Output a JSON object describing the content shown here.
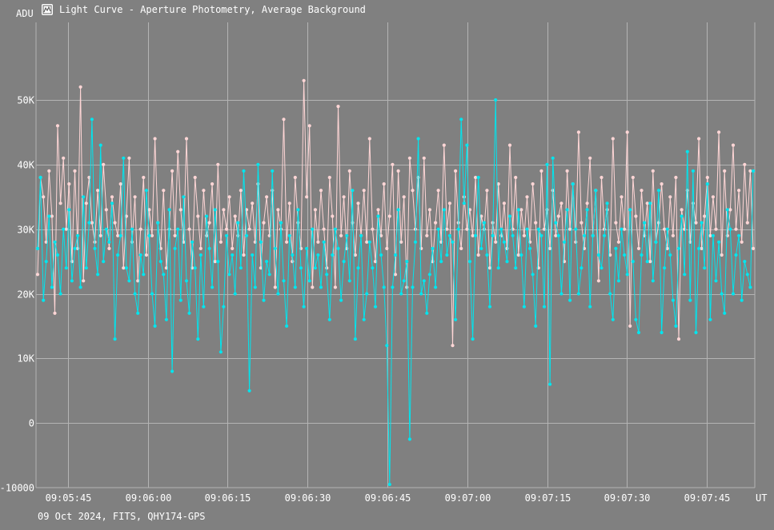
{
  "window": {
    "title": "Light Curve - Aperture Photometry, Average Background",
    "icon": "light-curve-icon"
  },
  "footer": "09 Oct 2024, FITS, QHY174-GPS",
  "colors": {
    "background": "#808080",
    "grid": "#b4b4b4",
    "series_target": "#ffd6d6",
    "series_comparison": "#00e5ee",
    "text": "#ffffff"
  },
  "chart_data": {
    "type": "line",
    "ylabel": "ADU",
    "xlabel": "UT",
    "ylim": [
      -10000,
      62000
    ],
    "xlim": [
      "09:05:39",
      "09:07:54"
    ],
    "yticks": [
      -10000,
      0,
      10000,
      20000,
      30000,
      40000,
      50000
    ],
    "ytick_labels": [
      "-10000",
      "0",
      "10K",
      "20K",
      "30K",
      "40K",
      "50K"
    ],
    "xtick_labels": [
      "09:05:45",
      "09:06:00",
      "09:06:15",
      "09:06:30",
      "09:06:45",
      "09:07:00",
      "09:07:15",
      "09:07:30",
      "09:07:45"
    ],
    "grid": true,
    "sampling": "approx. 0.1 s between points, 09:05:39.0 to 09:07:53.9",
    "series": [
      {
        "color": "#ffd6d6",
        "values": [
          23000,
          38000,
          35000,
          28000,
          39000,
          32000,
          17000,
          46000,
          34000,
          41000,
          30000,
          37000,
          25000,
          39000,
          27000,
          52000,
          22000,
          34000,
          38000,
          31000,
          28000,
          36000,
          29000,
          40000,
          33000,
          27000,
          35000,
          31000,
          29000,
          37000,
          24000,
          32000,
          41000,
          28000,
          35000,
          22000,
          30000,
          38000,
          26000,
          33000,
          29000,
          44000,
          31000,
          27000,
          36000,
          24000,
          30000,
          39000,
          29000,
          42000,
          33000,
          28000,
          44000,
          30000,
          24000,
          38000,
          32000,
          27000,
          36000,
          29000,
          31000,
          37000,
          25000,
          40000,
          28000,
          33000,
          30000,
          35000,
          27000,
          32000,
          29000,
          36000,
          26000,
          33000,
          30000,
          34000,
          28000,
          37000,
          24000,
          31000,
          35000,
          29000,
          36000,
          21000,
          33000,
          30000,
          47000,
          28000,
          34000,
          25000,
          38000,
          31000,
          27000,
          53000,
          35000,
          46000,
          21000,
          33000,
          28000,
          36000,
          30000,
          24000,
          38000,
          32000,
          21000,
          49000,
          29000,
          35000,
          27000,
          39000,
          31000,
          26000,
          34000,
          29000,
          36000,
          28000,
          44000,
          30000,
          25000,
          33000,
          29000,
          37000,
          27000,
          32000,
          40000,
          23000,
          39000,
          28000,
          35000,
          21000,
          41000,
          36000,
          30000,
          38000,
          27000,
          41000,
          29000,
          33000,
          25000,
          31000,
          36000,
          28000,
          43000,
          30000,
          34000,
          12000,
          39000,
          31000,
          27000,
          35000,
          30000,
          33000,
          29000,
          38000,
          26000,
          32000,
          30000,
          36000,
          24000,
          31000,
          28000,
          37000,
          29000,
          34000,
          27000,
          43000,
          30000,
          38000,
          26000,
          33000,
          29000,
          35000,
          28000,
          37000,
          31000,
          24000,
          39000,
          30000,
          33000,
          27000,
          36000,
          29000,
          32000,
          34000,
          25000,
          39000,
          30000,
          37000,
          28000,
          45000,
          31000,
          27000,
          34000,
          41000,
          29000,
          36000,
          22000,
          38000,
          30000,
          33000,
          26000,
          44000,
          31000,
          28000,
          35000,
          30000,
          45000,
          15000,
          38000,
          32000,
          27000,
          36000,
          29000,
          34000,
          25000,
          39000,
          28000,
          31000,
          37000,
          30000,
          27000,
          35000,
          29000,
          38000,
          13000,
          33000,
          30000,
          36000,
          28000,
          34000,
          31000,
          44000,
          27000,
          32000,
          38000,
          29000,
          35000,
          30000,
          45000,
          26000,
          39000,
          29000,
          33000,
          43000,
          30000,
          36000,
          28000,
          40000,
          31000,
          39000,
          27000
        ]
      },
      {
        "color": "#00e5ee",
        "values": [
          27000,
          38000,
          19000,
          25000,
          32000,
          21000,
          28000,
          26000,
          20000,
          30000,
          24000,
          33000,
          22000,
          27000,
          29000,
          21000,
          35000,
          24000,
          31000,
          47000,
          27000,
          23000,
          43000,
          25000,
          30000,
          28000,
          34000,
          13000,
          26000,
          29000,
          41000,
          24000,
          22000,
          30000,
          20000,
          17000,
          26000,
          23000,
          36000,
          29000,
          20000,
          15000,
          31000,
          25000,
          23000,
          16000,
          33000,
          8000,
          27000,
          30000,
          19000,
          35000,
          22000,
          17000,
          28000,
          24000,
          13000,
          26000,
          18000,
          32000,
          27000,
          21000,
          33000,
          25000,
          11000,
          18000,
          29000,
          23000,
          26000,
          20000,
          31000,
          24000,
          39000,
          29000,
          5000,
          26000,
          21000,
          40000,
          28000,
          19000,
          25000,
          23000,
          39000,
          27000,
          20000,
          31000,
          22000,
          15000,
          29000,
          26000,
          21000,
          33000,
          24000,
          18000,
          27000,
          22000,
          30000,
          24000,
          26000,
          21000,
          28000,
          23000,
          16000,
          26000,
          30000,
          27000,
          19000,
          25000,
          29000,
          22000,
          36000,
          13000,
          24000,
          29000,
          16000,
          20000,
          28000,
          24000,
          18000,
          32000,
          26000,
          21000,
          12000,
          -9500,
          21000,
          26000,
          33000,
          20000,
          22000,
          25000,
          -2500,
          21000,
          28000,
          44000,
          20000,
          22000,
          17000,
          23000,
          27000,
          21000,
          30000,
          25000,
          33000,
          26000,
          29000,
          28000,
          16000,
          30000,
          47000,
          34000,
          43000,
          25000,
          13000,
          29000,
          38000,
          27000,
          31000,
          26000,
          18000,
          29000,
          50000,
          24000,
          30000,
          28000,
          25000,
          32000,
          29000,
          24000,
          33000,
          26000,
          18000,
          30000,
          27000,
          23000,
          15000,
          30000,
          29000,
          18000,
          40000,
          6000,
          41000,
          31000,
          29000,
          20000,
          28000,
          33000,
          19000,
          37000,
          30000,
          20000,
          24000,
          29000,
          33000,
          18000,
          29000,
          36000,
          26000,
          24000,
          29000,
          34000,
          20000,
          16000,
          27000,
          22000,
          30000,
          26000,
          23000,
          33000,
          25000,
          16000,
          14000,
          26000,
          31000,
          25000,
          34000,
          22000,
          28000,
          36000,
          14000,
          24000,
          30000,
          26000,
          19000,
          15000,
          27000,
          32000,
          23000,
          42000,
          19000,
          39000,
          14000,
          27000,
          31000,
          24000,
          37000,
          16000,
          29000,
          22000,
          28000,
          20000,
          17000,
          33000,
          30000,
          20000,
          26000,
          29000,
          19000,
          25000,
          23000,
          21000,
          39000
        ]
      }
    ]
  }
}
